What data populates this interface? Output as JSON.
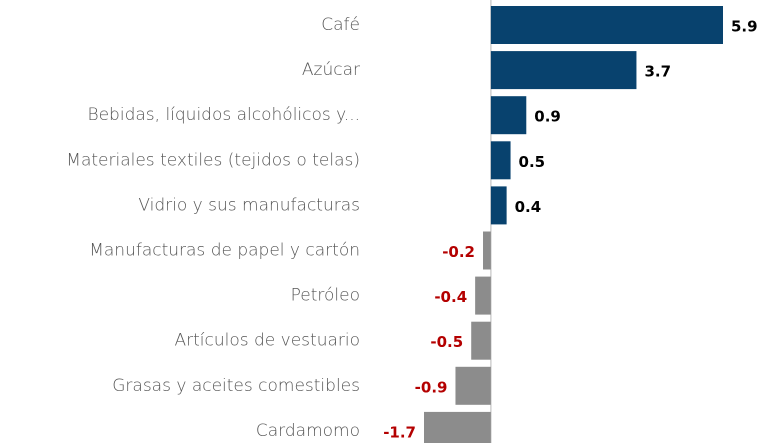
{
  "chart_data": {
    "type": "barh",
    "categories": [
      "Café",
      "Azúcar",
      "Bebidas, líquidos alcohólicos y...",
      "Materiales textiles (tejidos o telas)",
      "Vidrio y sus manufacturas",
      "Manufacturas de papel y cartón",
      "Petróleo",
      "Artículos de vestuario",
      "Grasas y aceites comestibles",
      "Cardamomo"
    ],
    "values": [
      5.9,
      3.7,
      0.9,
      0.5,
      0.4,
      -0.2,
      -0.4,
      -0.5,
      -0.9,
      -1.7
    ],
    "xlim": [
      -1.7,
      5.9
    ],
    "positive_color": "#08426e",
    "negative_color": "#8c8c8c",
    "positive_label_color": "#000000",
    "negative_label_color": "#b40000"
  }
}
